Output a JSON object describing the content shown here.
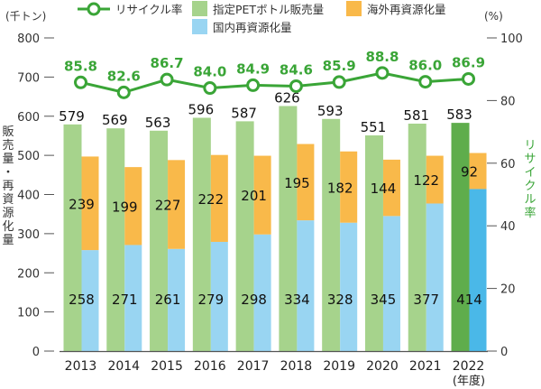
{
  "chart_data": {
    "type": "bar",
    "categories": [
      "2013",
      "2014",
      "2015",
      "2016",
      "2017",
      "2018",
      "2019",
      "2020",
      "2021",
      "2022"
    ],
    "category_note": "(年度)",
    "left_axis": {
      "unit": "(千トン)",
      "title": "販売量・再資源化量",
      "ylim": [
        0,
        800
      ],
      "ticks": [
        0,
        100,
        200,
        300,
        400,
        500,
        600,
        700,
        800
      ]
    },
    "right_axis": {
      "unit": "(%)",
      "title": "リサイクル率",
      "ylim": [
        0,
        100
      ],
      "ticks": [
        0,
        20,
        40,
        60,
        80,
        100
      ]
    },
    "series": [
      {
        "name": "指定PETボトル販売量",
        "kind": "bar",
        "axis": "left",
        "values": [
          579,
          569,
          563,
          596,
          587,
          626,
          593,
          551,
          581,
          583
        ]
      },
      {
        "name": "海外再資源化量",
        "kind": "stacked-bar",
        "axis": "left",
        "values": [
          239,
          199,
          227,
          222,
          201,
          195,
          182,
          144,
          122,
          92
        ]
      },
      {
        "name": "国内再資源化量",
        "kind": "stacked-bar",
        "axis": "left",
        "values": [
          258,
          271,
          261,
          279,
          298,
          334,
          328,
          345,
          377,
          414
        ]
      },
      {
        "name": "リサイクル率",
        "kind": "line",
        "axis": "right",
        "values": [
          85.8,
          82.6,
          86.7,
          84.0,
          84.9,
          84.6,
          85.9,
          88.8,
          86.0,
          86.9
        ]
      }
    ],
    "legend_position": "top",
    "colors": {
      "sales": "#a6d38c",
      "sales_highlight": "#5fad4c",
      "overseas": "#f9b94a",
      "domestic": "#99d5f2",
      "domestic_highlight": "#4ab8e8",
      "line": "#3aa537"
    },
    "grid": false
  }
}
